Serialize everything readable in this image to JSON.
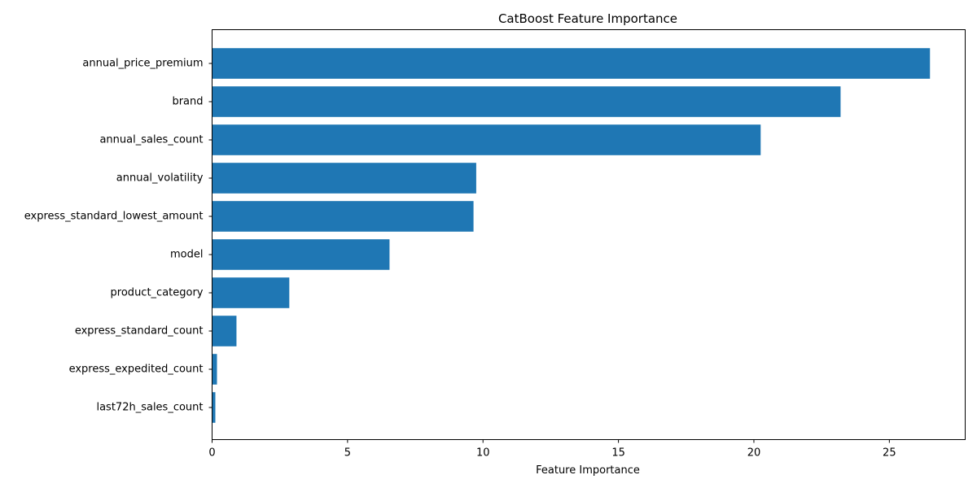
{
  "chart_data": {
    "type": "bar",
    "orientation": "horizontal",
    "title": "CatBoost Feature Importance",
    "xlabel": "Feature Importance",
    "ylabel": "",
    "categories": [
      "annual_price_premium",
      "brand",
      "annual_sales_count",
      "annual_volatility",
      "express_standard_lowest_amount",
      "model",
      "product_category",
      "express_standard_count",
      "express_expedited_count",
      "last72h_sales_count"
    ],
    "values": [
      26.5,
      23.2,
      20.25,
      9.75,
      9.65,
      6.55,
      2.85,
      0.9,
      0.18,
      0.12
    ],
    "xlim": [
      0,
      27.8
    ],
    "xticks": [
      0,
      5,
      10,
      15,
      20,
      25
    ],
    "xtick_labels": [
      "0",
      "5",
      "10",
      "15",
      "20",
      "25"
    ],
    "bar_color": "#1f77b4",
    "grid": false,
    "legend": "none"
  }
}
